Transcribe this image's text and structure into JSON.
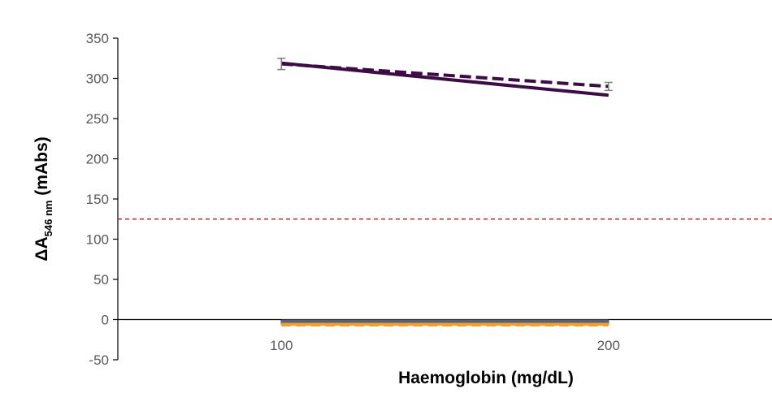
{
  "chart_data": {
    "type": "line",
    "title": "",
    "xlabel": "Haemoglobin (mg/dL)",
    "ylabel": {
      "prefix": "ΔA",
      "subscript": "546 nm",
      "suffix": " (mAbs)"
    },
    "x": [
      100,
      200
    ],
    "xlim": [
      50,
      250
    ],
    "x_ticks": [
      "100",
      "200"
    ],
    "ylim": [
      -50,
      350
    ],
    "y_ticks": [
      "350",
      "300",
      "250",
      "200",
      "150",
      "100",
      "50",
      "0",
      "-50"
    ],
    "grid": false,
    "legend": "none",
    "series": [
      {
        "values": [
          319,
          279
        ],
        "color": "#3d0c45",
        "style": "solid"
      },
      {
        "values": [
          318,
          290
        ],
        "color": "#3d0c45",
        "style": "dashed",
        "error": [
          7,
          5
        ]
      },
      {
        "values": [
          -4,
          -4
        ],
        "color": "#f2a12e",
        "style": "solid"
      },
      {
        "values": [
          -5,
          -5
        ],
        "color": "#f2a12e",
        "style": "dashed"
      },
      {
        "values": [
          -2,
          -2
        ],
        "color": "#5e5e72",
        "style": "solid"
      }
    ],
    "threshold": {
      "value": 125,
      "color": "#e0241b",
      "style": "dashed"
    }
  }
}
